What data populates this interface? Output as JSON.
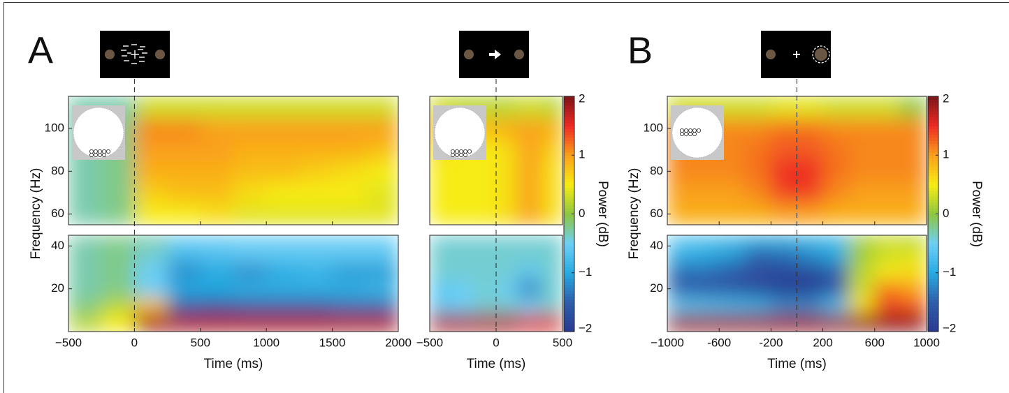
{
  "chart_data": [
    {
      "type": "heatmap",
      "panel": "A",
      "x_label": "Time (ms)",
      "y_label": "Frequency (Hz)",
      "colormap": [
        "#2b3990",
        "#2e5eaa",
        "#27aae1",
        "#6dcff6",
        "#8dc63f",
        "#f7ec13",
        "#f9a01b",
        "#ee2a24",
        "#7d1517"
      ],
      "xlim": [
        -500,
        2000
      ],
      "xticks": [
        {
          "value": -500,
          "label": "−500"
        },
        0,
        500,
        1000,
        1500,
        2000
      ],
      "x": [
        -375,
        -125,
        125,
        375,
        625,
        875,
        1125,
        1375,
        1625,
        1875
      ],
      "subplots": [
        {
          "ylim": [
            55,
            115
          ],
          "yticks": [
            60,
            80,
            100
          ],
          "y": [
            60,
            70,
            80,
            90,
            100,
            110
          ],
          "z": [
            [
              -0.3,
              -0.2,
              0.5,
              0.5,
              0.6,
              0.4,
              0.4,
              0.4,
              0.4,
              0.4
            ],
            [
              -0.3,
              -0.2,
              0.7,
              0.8,
              0.8,
              0.6,
              0.5,
              0.5,
              0.5,
              0.4
            ],
            [
              -0.3,
              -0.2,
              0.9,
              0.9,
              0.9,
              0.8,
              0.8,
              0.7,
              0.6,
              0.5
            ],
            [
              -0.3,
              -0.2,
              1.0,
              1.0,
              1.0,
              0.9,
              0.9,
              0.9,
              0.9,
              0.8
            ],
            [
              -0.3,
              -0.2,
              1.1,
              1.1,
              1.0,
              1.0,
              1.0,
              1.0,
              1.0,
              1.0
            ],
            [
              -0.3,
              -0.3,
              0.3,
              0.3,
              0.3,
              0.3,
              0.3,
              0.3,
              0.3,
              0.3
            ]
          ]
        },
        {
          "ylim": [
            0,
            45
          ],
          "yticks": [
            20,
            40
          ],
          "y": [
            5,
            12,
            20,
            28,
            36,
            43
          ],
          "z": [
            [
              0.2,
              0.5,
              1.8,
              1.8,
              1.8,
              1.8,
              1.8,
              1.8,
              1.8,
              1.8
            ],
            [
              -0.2,
              0.2,
              0.8,
              -1.5,
              -1.6,
              -1.5,
              -1.5,
              -1.5,
              -1.4,
              -1.4
            ],
            [
              -0.3,
              -0.2,
              -0.5,
              -1.0,
              -1.0,
              -0.9,
              -0.9,
              -0.9,
              -0.9,
              -0.8
            ],
            [
              -0.3,
              -0.2,
              -0.5,
              -1.2,
              -1.0,
              -1.2,
              -1.0,
              -0.9,
              -1.1,
              -1.1
            ],
            [
              -0.3,
              -0.2,
              -0.4,
              -0.8,
              -0.7,
              -0.6,
              -0.6,
              -0.6,
              -0.6,
              -0.6
            ],
            [
              -0.3,
              -0.2,
              -0.3,
              -0.5,
              -0.5,
              -0.5,
              -0.5,
              -0.5,
              -0.5,
              -0.5
            ]
          ]
        }
      ]
    },
    {
      "type": "heatmap",
      "x_label": "Time (ms)",
      "colormap": [
        "#2b3990",
        "#2e5eaa",
        "#27aae1",
        "#6dcff6",
        "#8dc63f",
        "#f7ec13",
        "#f9a01b",
        "#ee2a24",
        "#7d1517"
      ],
      "xlim": [
        -500,
        500
      ],
      "xticks": [
        {
          "value": -500,
          "label": "−500"
        },
        0,
        500
      ],
      "x": [
        -417,
        -250,
        -83,
        83,
        250,
        417
      ],
      "subplots": [
        {
          "ylim": [
            55,
            115
          ],
          "y": [
            60,
            70,
            80,
            90,
            100,
            110
          ],
          "z": [
            [
              0.5,
              0.5,
              0.5,
              0.6,
              1.0,
              0.6
            ],
            [
              0.5,
              0.5,
              0.5,
              0.6,
              1.0,
              0.6
            ],
            [
              0.5,
              0.5,
              0.5,
              0.6,
              1.0,
              0.6
            ],
            [
              0.6,
              0.5,
              0.5,
              0.6,
              1.0,
              0.7
            ],
            [
              0.9,
              0.8,
              0.8,
              0.9,
              1.0,
              0.9
            ],
            [
              0.3,
              0.2,
              0.2,
              0.2,
              0.3,
              0.2
            ]
          ]
        },
        {
          "ylim": [
            0,
            45
          ],
          "y": [
            5,
            12,
            20,
            28,
            36,
            43
          ],
          "z": [
            [
              1.8,
              1.8,
              1.8,
              1.8,
              1.6,
              1.6
            ],
            [
              -0.6,
              -0.5,
              -0.4,
              -0.4,
              -0.5,
              -0.4
            ],
            [
              -0.6,
              -0.5,
              -0.4,
              -0.5,
              -1.3,
              -0.4
            ],
            [
              -0.4,
              -0.4,
              -0.4,
              -0.4,
              -0.6,
              -0.4
            ],
            [
              -0.4,
              -0.4,
              -0.4,
              -0.4,
              -0.4,
              -0.4
            ],
            [
              -0.4,
              -0.4,
              -0.4,
              -0.4,
              -0.4,
              -0.4
            ]
          ]
        }
      ],
      "colorbar": {
        "label": "Power (dB)",
        "zlim": [
          -2,
          2
        ],
        "ticks": [
          {
            "value": -2,
            "label": "−2"
          },
          {
            "value": -1,
            "label": "−1"
          },
          0,
          1,
          2
        ]
      }
    },
    {
      "type": "heatmap",
      "panel": "B",
      "x_label": "Time (ms)",
      "y_label": "Frequency (Hz)",
      "colormap": [
        "#2b3990",
        "#2e5eaa",
        "#27aae1",
        "#6dcff6",
        "#8dc63f",
        "#f7ec13",
        "#f9a01b",
        "#ee2a24",
        "#7d1517"
      ],
      "xlim": [
        -1000,
        1000
      ],
      "xticks": [
        {
          "value": -1000,
          "label": "−1000"
        },
        -600,
        -200,
        200,
        600,
        1000
      ],
      "x": [
        -900,
        -700,
        -500,
        -300,
        -100,
        100,
        300,
        500,
        700,
        900
      ],
      "subplots": [
        {
          "ylim": [
            55,
            115
          ],
          "yticks": [
            60,
            80,
            100
          ],
          "y": [
            60,
            70,
            80,
            90,
            100,
            110
          ],
          "z": [
            [
              0.9,
              0.9,
              0.9,
              0.9,
              1.0,
              1.0,
              0.9,
              0.9,
              0.9,
              0.9
            ],
            [
              1.0,
              1.0,
              1.0,
              1.1,
              1.4,
              1.4,
              1.1,
              1.0,
              1.0,
              1.0
            ],
            [
              1.1,
              1.1,
              1.1,
              1.2,
              1.5,
              1.5,
              1.2,
              1.1,
              1.1,
              1.1
            ],
            [
              1.1,
              1.1,
              1.1,
              1.2,
              1.3,
              1.3,
              1.2,
              1.1,
              1.1,
              1.1
            ],
            [
              1.1,
              1.1,
              1.1,
              1.1,
              1.2,
              1.2,
              1.1,
              1.1,
              1.1,
              1.1
            ],
            [
              0.3,
              0.3,
              0.3,
              0.3,
              0.4,
              0.4,
              0.3,
              0.3,
              0.3,
              0.0
            ]
          ]
        },
        {
          "ylim": [
            0,
            45
          ],
          "yticks": [
            20,
            40
          ],
          "y": [
            5,
            12,
            20,
            28,
            36,
            43
          ],
          "z": [
            [
              1.9,
              1.9,
              1.9,
              1.9,
              1.9,
              1.9,
              1.9,
              1.9,
              1.9,
              1.9
            ],
            [
              -0.6,
              -0.7,
              -0.8,
              -0.9,
              -1.2,
              -1.2,
              -0.7,
              0.6,
              1.4,
              1.3
            ],
            [
              -1.5,
              -1.6,
              -1.6,
              -1.8,
              -1.9,
              -1.9,
              -1.6,
              0.3,
              1.2,
              1.0
            ],
            [
              -1.4,
              -1.4,
              -1.6,
              -1.7,
              -1.8,
              -1.8,
              -1.5,
              0.2,
              0.5,
              0.6
            ],
            [
              -0.9,
              -1.0,
              -1.1,
              -1.5,
              -1.4,
              -1.2,
              -1.0,
              0.1,
              0.3,
              0.4
            ],
            [
              -0.6,
              -0.7,
              -0.8,
              -1.0,
              -1.0,
              -0.9,
              -0.8,
              0.1,
              0.3,
              0.2
            ]
          ]
        }
      ],
      "colorbar": {
        "label": "Power (dB)",
        "zlim": [
          -2,
          2
        ],
        "ticks": [
          {
            "value": -2,
            "label": "−2"
          },
          {
            "value": -1,
            "label": "−1"
          },
          0,
          1,
          2
        ]
      }
    }
  ]
}
